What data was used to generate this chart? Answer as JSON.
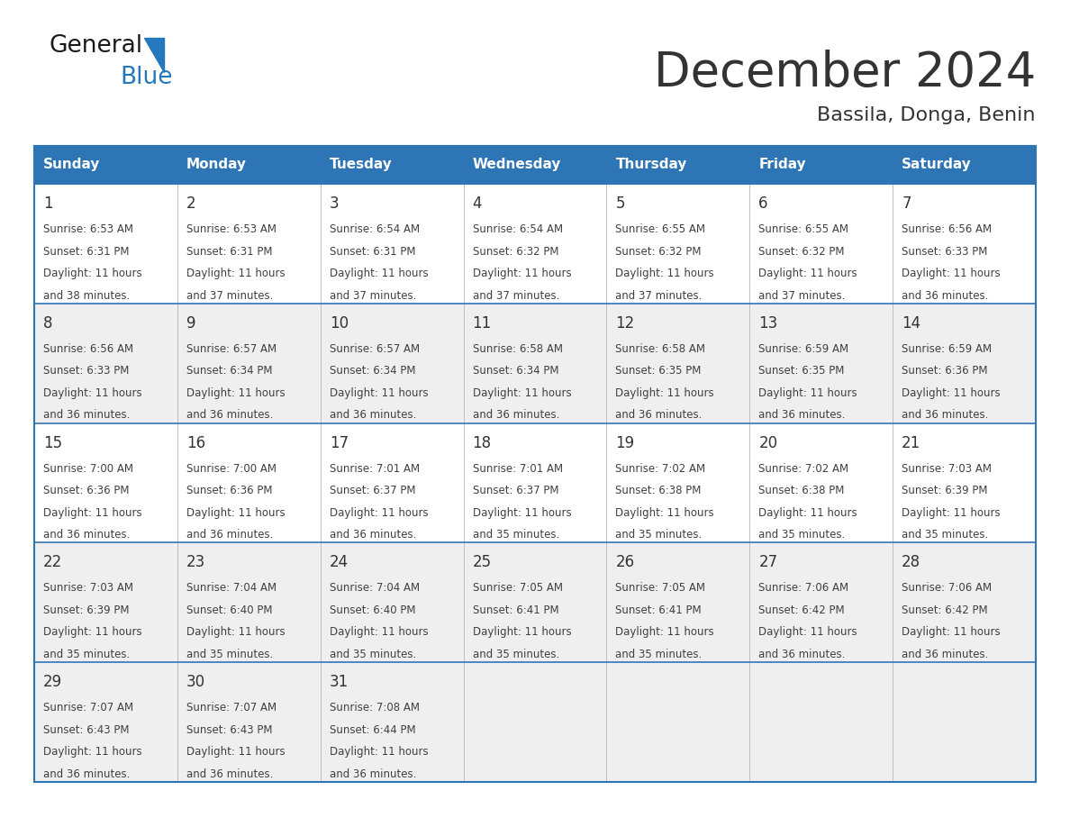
{
  "title": "December 2024",
  "subtitle": "Bassila, Donga, Benin",
  "header_color": "#2E75B6",
  "header_text_color": "#FFFFFF",
  "border_color": "#2E75B6",
  "text_color": "#404040",
  "day_number_color": "#333333",
  "row_colors": [
    "#FFFFFF",
    "#EFEFEF",
    "#FFFFFF",
    "#EFEFEF",
    "#EFEFEF"
  ],
  "days_of_week": [
    "Sunday",
    "Monday",
    "Tuesday",
    "Wednesday",
    "Thursday",
    "Friday",
    "Saturday"
  ],
  "weeks": [
    [
      {
        "day": 1,
        "sunrise": "6:53 AM",
        "sunset": "6:31 PM",
        "daylight": "11 hours and 38 minutes."
      },
      {
        "day": 2,
        "sunrise": "6:53 AM",
        "sunset": "6:31 PM",
        "daylight": "11 hours and 37 minutes."
      },
      {
        "day": 3,
        "sunrise": "6:54 AM",
        "sunset": "6:31 PM",
        "daylight": "11 hours and 37 minutes."
      },
      {
        "day": 4,
        "sunrise": "6:54 AM",
        "sunset": "6:32 PM",
        "daylight": "11 hours and 37 minutes."
      },
      {
        "day": 5,
        "sunrise": "6:55 AM",
        "sunset": "6:32 PM",
        "daylight": "11 hours and 37 minutes."
      },
      {
        "day": 6,
        "sunrise": "6:55 AM",
        "sunset": "6:32 PM",
        "daylight": "11 hours and 37 minutes."
      },
      {
        "day": 7,
        "sunrise": "6:56 AM",
        "sunset": "6:33 PM",
        "daylight": "11 hours and 36 minutes."
      }
    ],
    [
      {
        "day": 8,
        "sunrise": "6:56 AM",
        "sunset": "6:33 PM",
        "daylight": "11 hours and 36 minutes."
      },
      {
        "day": 9,
        "sunrise": "6:57 AM",
        "sunset": "6:34 PM",
        "daylight": "11 hours and 36 minutes."
      },
      {
        "day": 10,
        "sunrise": "6:57 AM",
        "sunset": "6:34 PM",
        "daylight": "11 hours and 36 minutes."
      },
      {
        "day": 11,
        "sunrise": "6:58 AM",
        "sunset": "6:34 PM",
        "daylight": "11 hours and 36 minutes."
      },
      {
        "day": 12,
        "sunrise": "6:58 AM",
        "sunset": "6:35 PM",
        "daylight": "11 hours and 36 minutes."
      },
      {
        "day": 13,
        "sunrise": "6:59 AM",
        "sunset": "6:35 PM",
        "daylight": "11 hours and 36 minutes."
      },
      {
        "day": 14,
        "sunrise": "6:59 AM",
        "sunset": "6:36 PM",
        "daylight": "11 hours and 36 minutes."
      }
    ],
    [
      {
        "day": 15,
        "sunrise": "7:00 AM",
        "sunset": "6:36 PM",
        "daylight": "11 hours and 36 minutes."
      },
      {
        "day": 16,
        "sunrise": "7:00 AM",
        "sunset": "6:36 PM",
        "daylight": "11 hours and 36 minutes."
      },
      {
        "day": 17,
        "sunrise": "7:01 AM",
        "sunset": "6:37 PM",
        "daylight": "11 hours and 36 minutes."
      },
      {
        "day": 18,
        "sunrise": "7:01 AM",
        "sunset": "6:37 PM",
        "daylight": "11 hours and 35 minutes."
      },
      {
        "day": 19,
        "sunrise": "7:02 AM",
        "sunset": "6:38 PM",
        "daylight": "11 hours and 35 minutes."
      },
      {
        "day": 20,
        "sunrise": "7:02 AM",
        "sunset": "6:38 PM",
        "daylight": "11 hours and 35 minutes."
      },
      {
        "day": 21,
        "sunrise": "7:03 AM",
        "sunset": "6:39 PM",
        "daylight": "11 hours and 35 minutes."
      }
    ],
    [
      {
        "day": 22,
        "sunrise": "7:03 AM",
        "sunset": "6:39 PM",
        "daylight": "11 hours and 35 minutes."
      },
      {
        "day": 23,
        "sunrise": "7:04 AM",
        "sunset": "6:40 PM",
        "daylight": "11 hours and 35 minutes."
      },
      {
        "day": 24,
        "sunrise": "7:04 AM",
        "sunset": "6:40 PM",
        "daylight": "11 hours and 35 minutes."
      },
      {
        "day": 25,
        "sunrise": "7:05 AM",
        "sunset": "6:41 PM",
        "daylight": "11 hours and 35 minutes."
      },
      {
        "day": 26,
        "sunrise": "7:05 AM",
        "sunset": "6:41 PM",
        "daylight": "11 hours and 35 minutes."
      },
      {
        "day": 27,
        "sunrise": "7:06 AM",
        "sunset": "6:42 PM",
        "daylight": "11 hours and 36 minutes."
      },
      {
        "day": 28,
        "sunrise": "7:06 AM",
        "sunset": "6:42 PM",
        "daylight": "11 hours and 36 minutes."
      }
    ],
    [
      {
        "day": 29,
        "sunrise": "7:07 AM",
        "sunset": "6:43 PM",
        "daylight": "11 hours and 36 minutes."
      },
      {
        "day": 30,
        "sunrise": "7:07 AM",
        "sunset": "6:43 PM",
        "daylight": "11 hours and 36 minutes."
      },
      {
        "day": 31,
        "sunrise": "7:08 AM",
        "sunset": "6:44 PM",
        "daylight": "11 hours and 36 minutes."
      },
      null,
      null,
      null,
      null
    ]
  ],
  "logo_text_general": "General",
  "logo_text_blue": "Blue",
  "logo_color_general": "#1a1a1a",
  "logo_color_blue": "#2578BE"
}
